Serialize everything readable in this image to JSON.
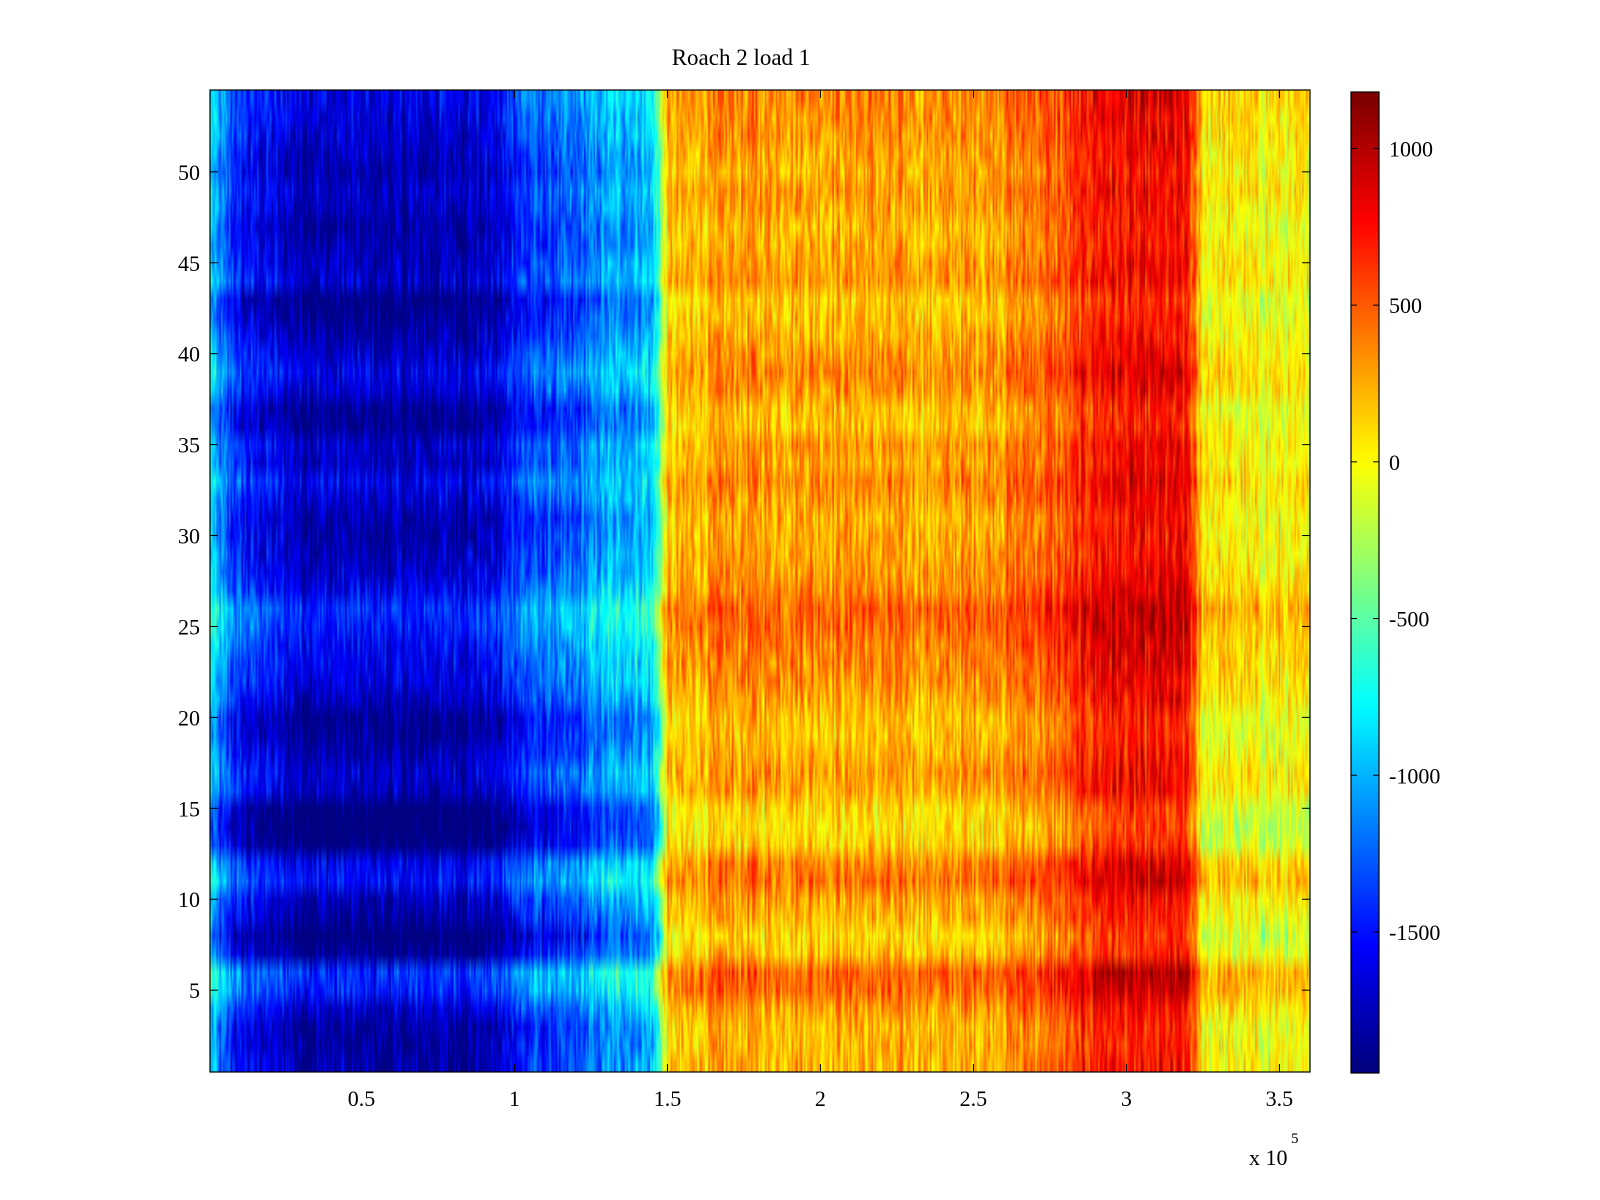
{
  "chart_data": {
    "type": "heatmap",
    "title": "Roach 2 load 1",
    "xlabel": "",
    "ylabel": "",
    "x_multiplier_label": "x 10",
    "x_multiplier_exponent": "5",
    "x_multiplier_value": 100000,
    "xlim": [
      0.005,
      3.6
    ],
    "ylim": [
      0.5,
      54.5
    ],
    "x_ticks": [
      0.5,
      1,
      1.5,
      2,
      2.5,
      3,
      3.5
    ],
    "x_tick_labels": [
      "0.5",
      "1",
      "1.5",
      "2",
      "2.5",
      "3",
      "3.5"
    ],
    "y_ticks": [
      5,
      10,
      15,
      20,
      25,
      30,
      35,
      40,
      45,
      50
    ],
    "y_tick_labels": [
      "5",
      "10",
      "15",
      "20",
      "25",
      "30",
      "35",
      "40",
      "45",
      "50"
    ],
    "rows": 54,
    "colormap": "jet",
    "clim": [
      -1950,
      1180
    ],
    "colorbar": {
      "position": "right",
      "ticks": [
        1000,
        500,
        0,
        -500,
        -1000,
        -1500
      ],
      "tick_labels": [
        "1000",
        "500",
        "0",
        "-500",
        "-1000",
        "-1500"
      ]
    },
    "profile_description_units": "x in data units (x10^5), value in colorbar units",
    "column_profile": [
      {
        "x": 0.005,
        "value": -700
      },
      {
        "x": 0.03,
        "value": -1000
      },
      {
        "x": 0.1,
        "value": -1350
      },
      {
        "x": 0.3,
        "value": -1600
      },
      {
        "x": 0.6,
        "value": -1650
      },
      {
        "x": 0.95,
        "value": -1550
      },
      {
        "x": 1.0,
        "value": -1250
      },
      {
        "x": 1.2,
        "value": -1150
      },
      {
        "x": 1.3,
        "value": -900
      },
      {
        "x": 1.45,
        "value": -800
      },
      {
        "x": 1.5,
        "value": 250
      },
      {
        "x": 1.7,
        "value": 400
      },
      {
        "x": 2.0,
        "value": 400
      },
      {
        "x": 2.4,
        "value": 350
      },
      {
        "x": 2.6,
        "value": 450
      },
      {
        "x": 2.8,
        "value": 600
      },
      {
        "x": 2.9,
        "value": 850
      },
      {
        "x": 3.05,
        "value": 850
      },
      {
        "x": 3.2,
        "value": 850
      },
      {
        "x": 3.25,
        "value": 150
      },
      {
        "x": 3.6,
        "value": 50
      }
    ],
    "row_offsets": [
      -200,
      -250,
      -250,
      -100,
      150,
      200,
      -300,
      -450,
      -250,
      -150,
      100,
      0,
      -400,
      -500,
      -450,
      -150,
      -100,
      -200,
      -300,
      -300,
      -150,
      -50,
      0,
      50,
      150,
      200,
      0,
      -100,
      -150,
      -200,
      -200,
      -100,
      0,
      -150,
      -100,
      -300,
      -300,
      -100,
      0,
      -100,
      -200,
      -300,
      -350,
      -100,
      -150,
      -200,
      -250,
      -150,
      -100,
      -200,
      -150,
      -100,
      -50,
      0
    ]
  }
}
